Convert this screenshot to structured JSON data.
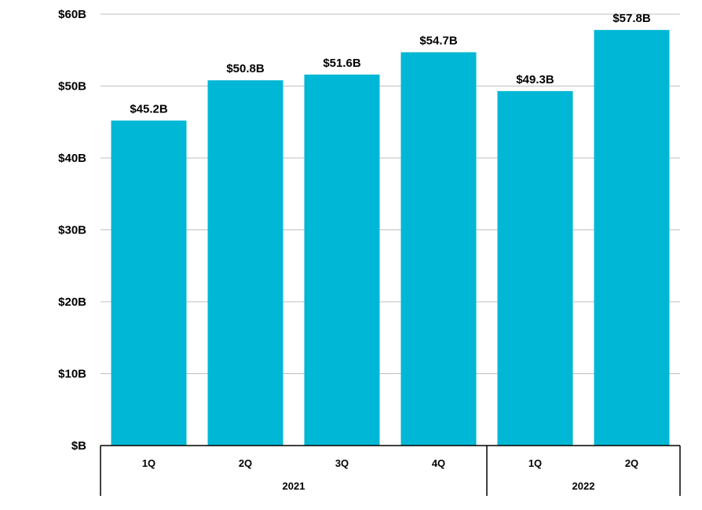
{
  "chart_data": {
    "type": "bar",
    "categories": [
      "1Q",
      "2Q",
      "3Q",
      "4Q",
      "1Q",
      "2Q"
    ],
    "groups": [
      {
        "label": "2021",
        "count": 4
      },
      {
        "label": "2022",
        "count": 2
      }
    ],
    "values": [
      45.2,
      50.8,
      51.6,
      54.7,
      49.3,
      57.8
    ],
    "data_labels": [
      "$45.2B",
      "$50.8B",
      "$51.6B",
      "$54.7B",
      "$49.3B",
      "$57.8B"
    ],
    "y_ticks": [
      "$B",
      "$10B",
      "$20B",
      "$30B",
      "$40B",
      "$50B",
      "$60B"
    ],
    "ylim": [
      0,
      60
    ],
    "title": "",
    "xlabel": "",
    "ylabel": "",
    "grid": true,
    "bar_color": "#00B7D5",
    "grid_color": "#BFBFBF",
    "axis_color": "#000000"
  }
}
